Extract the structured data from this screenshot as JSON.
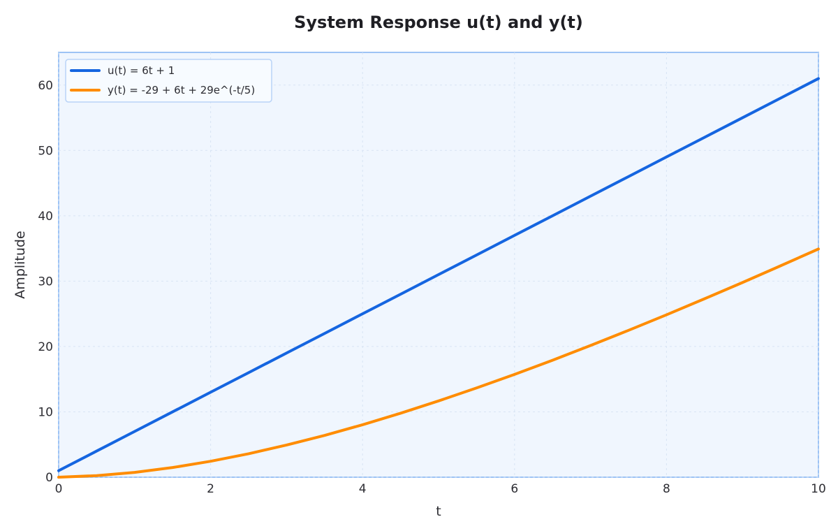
{
  "chart_data": {
    "type": "line",
    "title": "System Response u(t) and y(t)",
    "xlabel": "t",
    "ylabel": "Amplitude",
    "xlim": [
      0,
      10
    ],
    "ylim": [
      0,
      65
    ],
    "xticks": [
      0,
      2,
      4,
      6,
      8,
      10
    ],
    "yticks": [
      0,
      10,
      20,
      30,
      40,
      50,
      60
    ],
    "grid": true,
    "legend_position": "top-left",
    "series": [
      {
        "name": "u(t) = 6t + 1",
        "color": "#1565e0",
        "x": [
          0,
          0.5,
          1,
          1.5,
          2,
          2.5,
          3,
          3.5,
          4,
          4.5,
          5,
          5.5,
          6,
          6.5,
          7,
          7.5,
          8,
          8.5,
          9,
          9.5,
          10
        ],
        "y": [
          1,
          4,
          7,
          10,
          13,
          16,
          19,
          22,
          25,
          28,
          31,
          34,
          37,
          40,
          43,
          46,
          49,
          52,
          55,
          58,
          61
        ]
      },
      {
        "name": "y(t) = -29 + 6t + 29e^(-t/5)",
        "color": "#ff8c00",
        "x": [
          0,
          0.5,
          1,
          1.5,
          2,
          2.5,
          3,
          3.5,
          4,
          4.5,
          5,
          5.5,
          6,
          6.5,
          7,
          7.5,
          8,
          8.5,
          9,
          9.5,
          10
        ],
        "y": [
          0,
          0.24,
          0.74,
          1.48,
          2.44,
          3.59,
          4.92,
          6.4,
          8.03,
          9.79,
          11.67,
          13.66,
          15.73,
          17.9,
          20.15,
          22.47,
          24.85,
          27.3,
          29.79,
          32.34,
          34.92
        ]
      }
    ]
  }
}
